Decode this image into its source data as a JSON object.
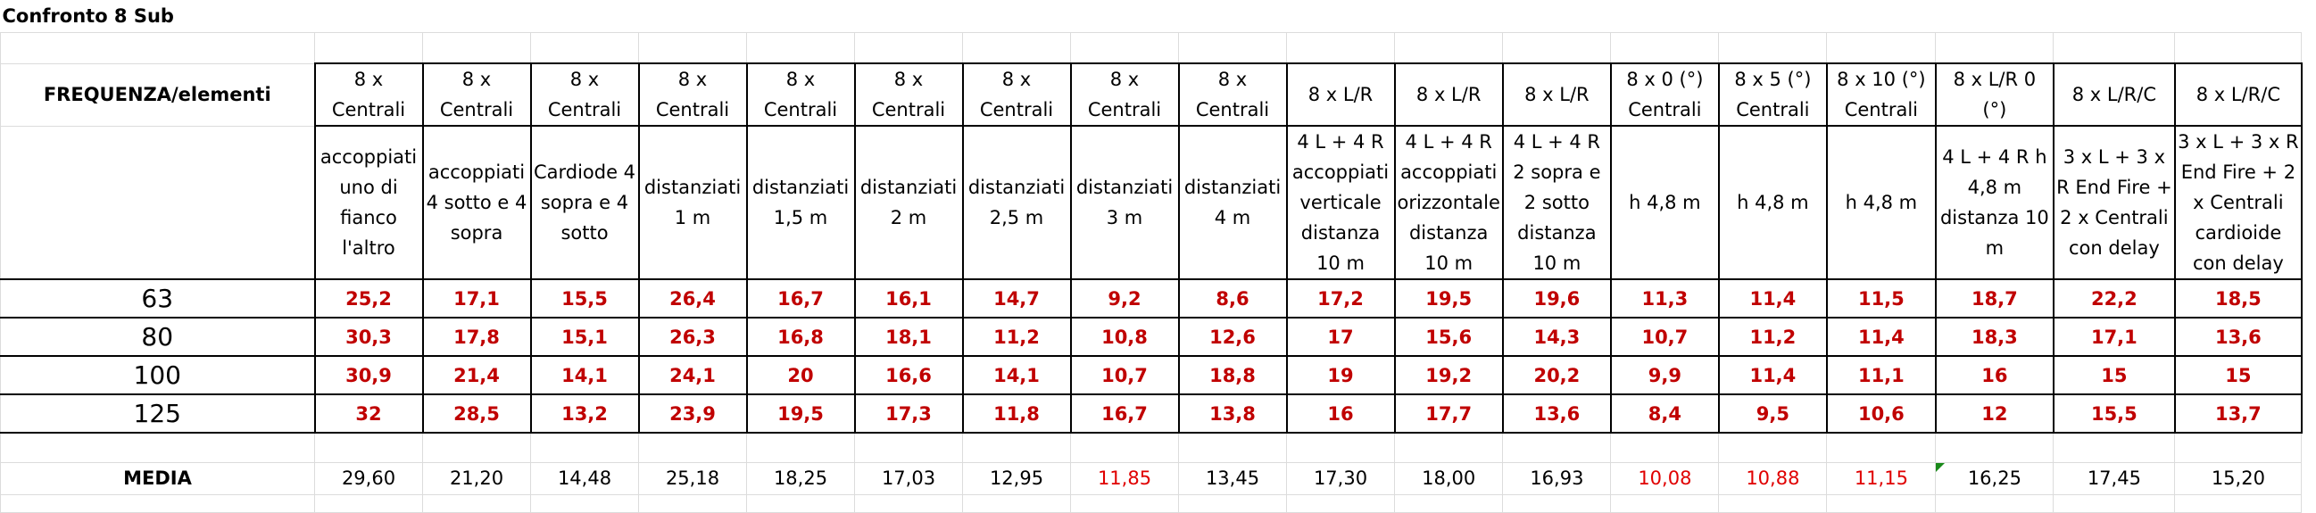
{
  "title": "Confronto 8 Sub",
  "header_label": "FREQUENZA/elementi",
  "columns": [
    {
      "type": "8 x Centrali",
      "description": "accoppiati uno di fianco l'altro"
    },
    {
      "type": "8 x Centrali",
      "description": "accoppiati 4 sotto e 4 sopra"
    },
    {
      "type": "8 x Centrali",
      "description": "Cardiode 4 sopra e 4 sotto"
    },
    {
      "type": "8 x Centrali",
      "description": "distanziati 1 m"
    },
    {
      "type": "8 x Centrali",
      "description": "distanziati 1,5 m"
    },
    {
      "type": "8 x Centrali",
      "description": "distanziati 2 m"
    },
    {
      "type": "8 x Centrali",
      "description": "distanziati 2,5 m"
    },
    {
      "type": "8 x Centrali",
      "description": "distanziati 3 m"
    },
    {
      "type": "8 x Centrali",
      "description": "distanziati 4 m"
    },
    {
      "type": "8 x L/R",
      "description": "4 L + 4 R accoppiati verticale distanza 10 m"
    },
    {
      "type": "8 x L/R",
      "description": "4 L + 4 R accoppiati orizzontale distanza 10 m"
    },
    {
      "type": "8 x L/R",
      "description": "4 L + 4 R 2 sopra e 2 sotto distanza 10 m"
    },
    {
      "type": "8 x 0 (°) Centrali",
      "description": "h 4,8 m"
    },
    {
      "type": "8 x 5 (°) Centrali",
      "description": "h 4,8 m"
    },
    {
      "type": "8 x 10 (°) Centrali",
      "description": "h 4,8 m"
    },
    {
      "type": "8 x L/R 0 (°)",
      "description": "4 L + 4 R h 4,8 m distanza 10 m"
    },
    {
      "type": "8 x L/R/C",
      "description": "3 x L + 3 x R End Fire + 2 x Centrali con delay"
    },
    {
      "type": "8 x L/R/C",
      "description": "3 x L + 3 x R End Fire + 2 x Centrali cardioide con delay"
    }
  ],
  "rows": [
    {
      "label": "63",
      "values": [
        "25,2",
        "17,1",
        "15,5",
        "26,4",
        "16,7",
        "16,1",
        "14,7",
        "9,2",
        "8,6",
        "17,2",
        "19,5",
        "19,6",
        "11,3",
        "11,4",
        "11,5",
        "18,7",
        "22,2",
        "18,5"
      ]
    },
    {
      "label": "80",
      "values": [
        "30,3",
        "17,8",
        "15,1",
        "26,3",
        "16,8",
        "18,1",
        "11,2",
        "10,8",
        "12,6",
        "17",
        "15,6",
        "14,3",
        "10,7",
        "11,2",
        "11,4",
        "18,3",
        "17,1",
        "13,6"
      ]
    },
    {
      "label": "100",
      "values": [
        "30,9",
        "21,4",
        "14,1",
        "24,1",
        "20",
        "16,6",
        "14,1",
        "10,7",
        "18,8",
        "19",
        "19,2",
        "20,2",
        "9,9",
        "11,4",
        "11,1",
        "16",
        "15",
        "15"
      ]
    },
    {
      "label": "125",
      "values": [
        "32",
        "28,5",
        "13,2",
        "23,9",
        "19,5",
        "17,3",
        "11,8",
        "16,7",
        "13,8",
        "16",
        "17,7",
        "13,6",
        "8,4",
        "9,5",
        "10,6",
        "12",
        "15,5",
        "13,7"
      ]
    }
  ],
  "media": {
    "label": "MEDIA",
    "values": [
      "29,60",
      "21,20",
      "14,48",
      "25,18",
      "18,25",
      "17,03",
      "12,95",
      "11,85",
      "13,45",
      "17,30",
      "18,00",
      "16,93",
      "10,08",
      "10,88",
      "11,15",
      "16,25",
      "17,45",
      "15,20"
    ],
    "colors": [
      "#000000",
      "#000000",
      "#000000",
      "#000000",
      "#000000",
      "#000000",
      "#000000",
      "#e00000",
      "#000000",
      "#000000",
      "#000000",
      "#000000",
      "#e00000",
      "#e00000",
      "#e00000",
      "#000000",
      "#000000",
      "#000000"
    ]
  }
}
